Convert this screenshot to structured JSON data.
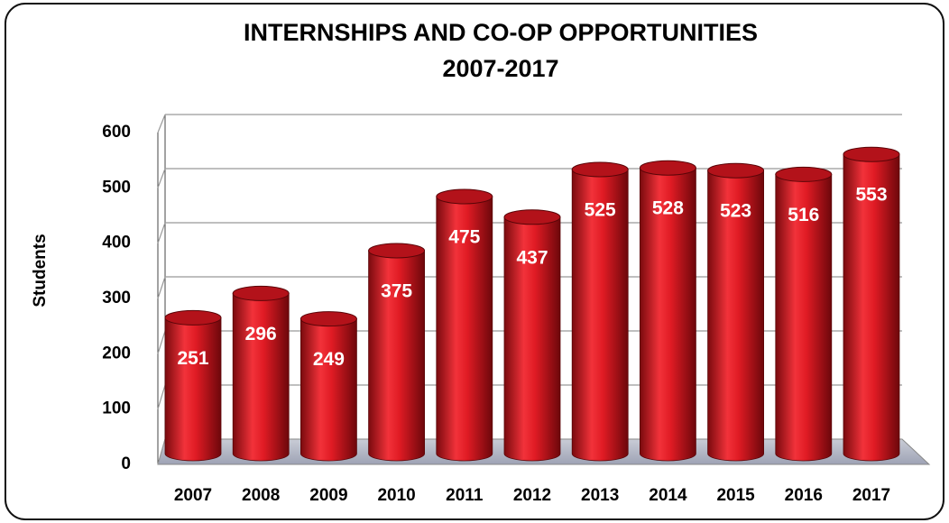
{
  "chart_data": {
    "type": "bar",
    "title": "INTERNSHIPS AND CO-OP OPPORTUNITIES",
    "subtitle": "2007-2017",
    "y_label": "Students",
    "categories": [
      "2007",
      "2008",
      "2009",
      "2010",
      "2011",
      "2012",
      "2013",
      "2014",
      "2015",
      "2016",
      "2017"
    ],
    "values": [
      251,
      296,
      249,
      375,
      475,
      437,
      525,
      528,
      523,
      516,
      553
    ],
    "color": "#e01b24",
    "ylim": [
      0,
      600
    ],
    "yticks": [
      0,
      100,
      200,
      300,
      400,
      500,
      600
    ],
    "grid": true
  }
}
